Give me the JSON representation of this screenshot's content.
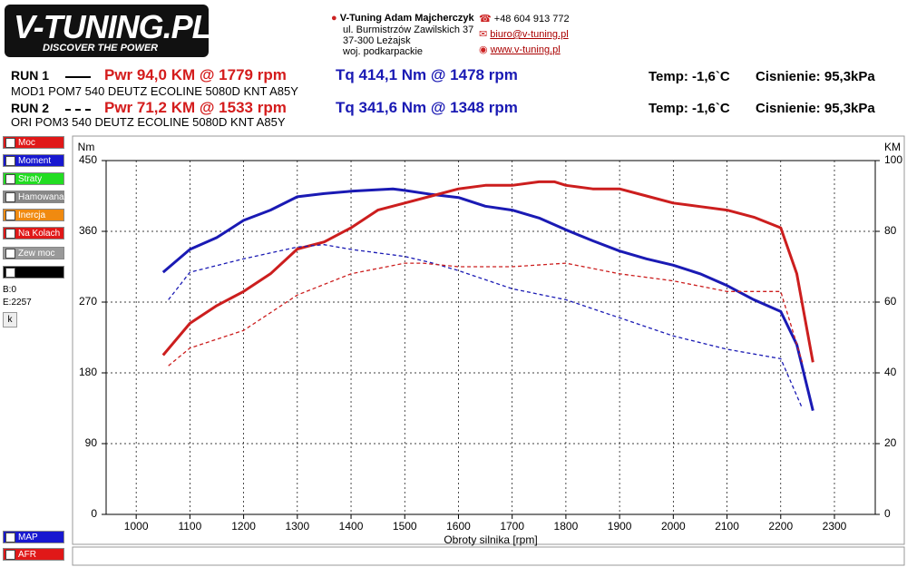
{
  "header": {
    "logo": "V-TUNING.PL",
    "slogan": "DISCOVER THE POWER",
    "company": "V-Tuning Adam Majcherczyk",
    "street": "ul. Burmistrzów Zawilskich 37",
    "city": "37-300 Leżajsk",
    "region": "woj. podkarpackie",
    "phone": "+48 604 913 772",
    "email": "biuro@v-tuning.pl",
    "www": "www.v-tuning.pl"
  },
  "runs": [
    {
      "label": "RUN 1",
      "desc": "MOD1 POM7 540 DEUTZ ECOLINE 5080D KNT A85Y",
      "pwr": "Pwr  94,0 KM @ 1779 rpm",
      "tq": "Tq 414,1 Nm @ 1478 rpm",
      "temp": "Temp: -1,6`C",
      "pressure": "Cisnienie: 95,3kPa"
    },
    {
      "label": "RUN 2",
      "desc": "ORI POM3 540 DEUTZ ECOLINE 5080D KNT A85Y",
      "pwr": "Pwr  71,2 KM @ 1533 rpm",
      "tq": "Tq 341,6 Nm @ 1348 rpm",
      "temp": "Temp: -1,6`C",
      "pressure": "Cisnienie: 95,3kPa"
    }
  ],
  "sidebar": {
    "items": [
      "Moc",
      "Moment obr.",
      "Straty",
      "Hamowana",
      "Inercja",
      "Na Kolach",
      "Zew moc st"
    ],
    "b": "B:0",
    "e": "E:2257",
    "button": "k",
    "bottom": [
      "MAP",
      "AFR"
    ]
  },
  "chart_data": {
    "type": "line",
    "x_label": "Obroty silnika [rpm]",
    "y_label": "Nm",
    "y2_label": "KM",
    "grid": true,
    "xlim": [
      944,
      2376
    ],
    "xticks": [
      1000,
      1100,
      1200,
      1300,
      1400,
      1500,
      1600,
      1700,
      1800,
      1900,
      2000,
      2100,
      2200,
      2300
    ],
    "ylim": [
      0,
      450
    ],
    "yticks": [
      0,
      90,
      180,
      270,
      360,
      450
    ],
    "y2lim": [
      0,
      100
    ],
    "y2ticks": [
      0,
      20,
      40,
      60,
      80,
      100
    ],
    "series": [
      {
        "color": "#1a1ab4",
        "dash": false,
        "x": [
          1050,
          1100,
          1150,
          1200,
          1250,
          1300,
          1350,
          1400,
          1450,
          1478,
          1500,
          1550,
          1600,
          1650,
          1700,
          1750,
          1800,
          1850,
          1900,
          1950,
          2000,
          2050,
          2100,
          2150,
          2200,
          2230,
          2260
        ],
        "values": [
          308,
          337,
          352,
          374,
          387,
          404,
          408,
          411,
          413,
          414,
          412,
          407,
          403,
          392,
          387,
          377,
          362,
          348,
          335,
          325,
          317,
          306,
          291,
          273,
          258,
          216,
          132
        ]
      },
      {
        "color": "#cc1e1e",
        "dash": false,
        "axis": "y2",
        "x": [
          1050,
          1100,
          1150,
          1200,
          1250,
          1300,
          1350,
          1400,
          1450,
          1500,
          1550,
          1600,
          1650,
          1700,
          1750,
          1779,
          1800,
          1850,
          1900,
          1950,
          2000,
          2050,
          2100,
          2150,
          2200,
          2230,
          2260
        ],
        "values": [
          45,
          54,
          59,
          63,
          68,
          75,
          77,
          81,
          86,
          88,
          90,
          92,
          93,
          93,
          94,
          94,
          93,
          92,
          92,
          90,
          88,
          87,
          86,
          84,
          81,
          68,
          43
        ]
      },
      {
        "color": "#1a1ab4",
        "dash": true,
        "x": [
          1060,
          1100,
          1200,
          1300,
          1350,
          1400,
          1500,
          1550,
          1600,
          1700,
          1800,
          1900,
          2000,
          2100,
          2150,
          2200,
          2240
        ],
        "values": [
          273,
          308,
          325,
          340,
          343,
          337,
          328,
          320,
          310,
          287,
          273,
          250,
          227,
          210,
          204,
          198,
          135
        ]
      },
      {
        "color": "#cc1e1e",
        "dash": true,
        "axis": "y2",
        "x": [
          1060,
          1100,
          1200,
          1300,
          1400,
          1500,
          1533,
          1600,
          1700,
          1800,
          1900,
          2000,
          2100,
          2200,
          2240
        ],
        "values": [
          42,
          47,
          52,
          62,
          68,
          71,
          71,
          70,
          70,
          71,
          68,
          66,
          63,
          63,
          43
        ]
      }
    ]
  }
}
